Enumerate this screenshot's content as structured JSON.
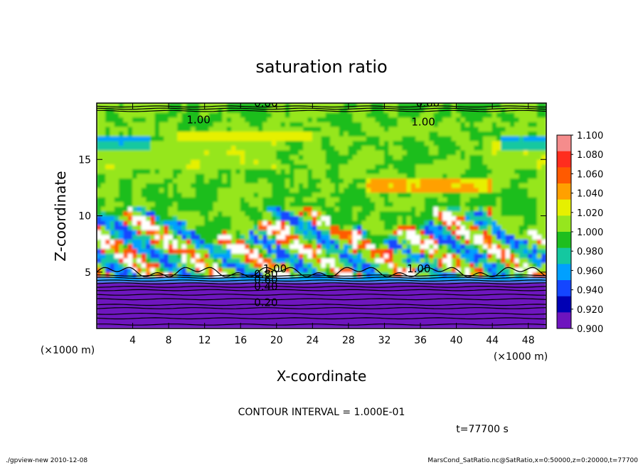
{
  "chart_data": {
    "type": "heatmap",
    "title": "saturation ratio",
    "xlabel": "X-coordinate",
    "ylabel": "Z-coordinate",
    "x_unit": "(×1000 m)",
    "y_unit": "(×1000 m)",
    "xlim": [
      0,
      50
    ],
    "ylim": [
      0,
      20
    ],
    "x_ticks": [
      "4",
      "8",
      "12",
      "16",
      "20",
      "24",
      "28",
      "32",
      "36",
      "40",
      "44",
      "48"
    ],
    "y_ticks": [
      "5",
      "10",
      "15"
    ],
    "x_tick_values": [
      4,
      8,
      12,
      16,
      20,
      24,
      28,
      32,
      36,
      40,
      44,
      48
    ],
    "y_tick_values": [
      5,
      10,
      15
    ],
    "contour_labels": [
      {
        "text": "0.80",
        "x": 17.5,
        "z": 19.7
      },
      {
        "text": "0.60",
        "x": 35.5,
        "z": 19.7
      },
      {
        "text": "1.00",
        "x": 10.0,
        "z": 18.2
      },
      {
        "text": "1.00",
        "x": 35.0,
        "z": 18.0
      },
      {
        "text": "1.00",
        "x": 18.5,
        "z": 5.0
      },
      {
        "text": "0.80",
        "x": 17.5,
        "z": 4.5
      },
      {
        "text": "0.60",
        "x": 17.5,
        "z": 4.0
      },
      {
        "text": "0.40",
        "x": 17.5,
        "z": 3.4
      },
      {
        "text": "0.20",
        "x": 17.5,
        "z": 2.0
      },
      {
        "text": "1.00",
        "x": 34.5,
        "z": 5.0
      }
    ],
    "colorbar": {
      "levels": [
        "1.100",
        "1.080",
        "1.060",
        "1.040",
        "1.020",
        "1.000",
        "0.980",
        "0.960",
        "0.940",
        "0.920",
        "0.900"
      ],
      "level_values": [
        1.1,
        1.08,
        1.06,
        1.04,
        1.02,
        1.0,
        0.98,
        0.96,
        0.94,
        0.92,
        0.9
      ],
      "colors": [
        "#f58c8c",
        "#ff2d1e",
        "#ff5a00",
        "#ffa000",
        "#e6f000",
        "#96e61e",
        "#1ebe1e",
        "#14c8a0",
        "#00a0ff",
        "#1446ff",
        "#0000b4",
        "#6e14be"
      ]
    },
    "fields": {
      "dominant_value": 1.0,
      "high_band_z": [
        5,
        11
      ],
      "subsaturated_below_z": 4.8
    },
    "contour_interval_text": "CONTOUR INTERVAL = 1.000E-01",
    "time_text": "t=77700 s"
  },
  "footer": {
    "left": "./gpview-new  2010-12-08",
    "right": "MarsCond_SatRatio.nc@SatRatio,x=0:50000,z=0:20000,t=77700"
  }
}
